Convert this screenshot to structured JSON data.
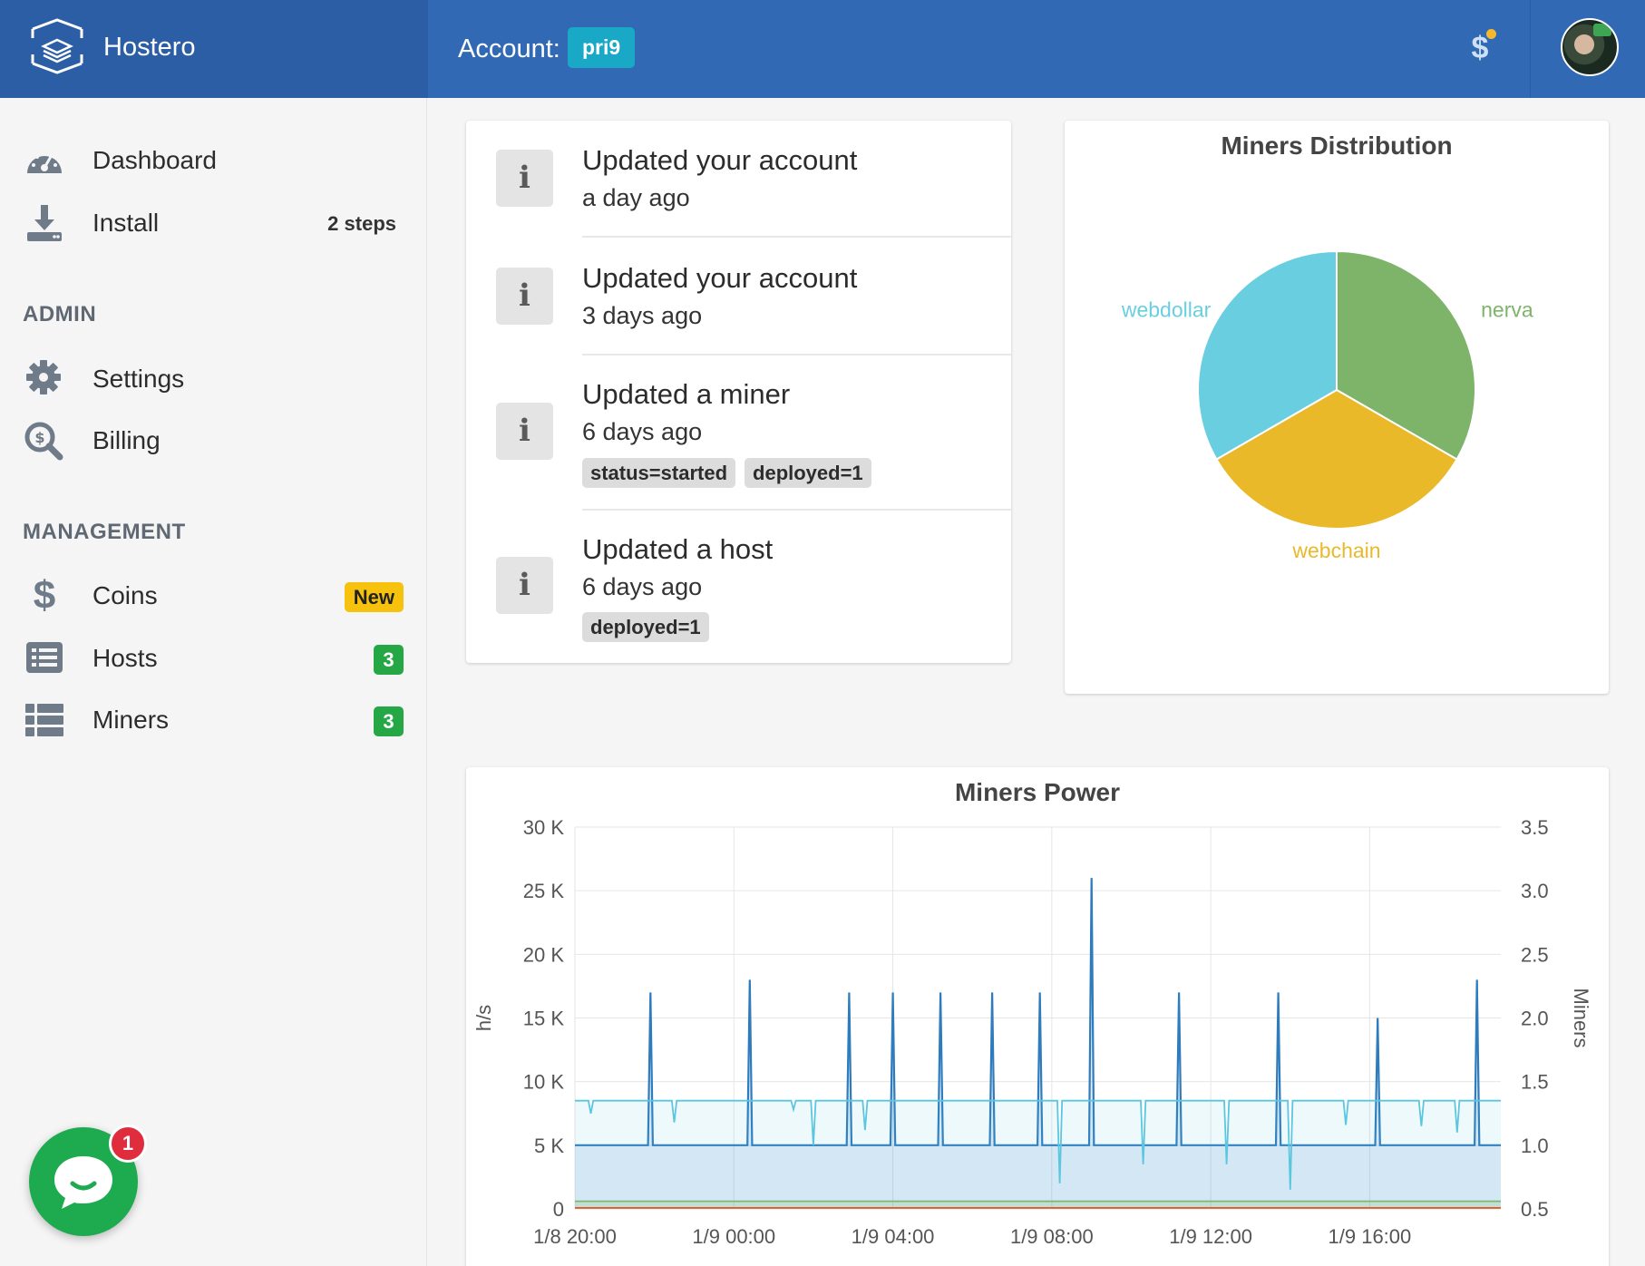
{
  "app": {
    "name": "Hostero"
  },
  "header": {
    "account_label": "Account:",
    "account_name": "pri9",
    "billing_icon": "dollar-icon",
    "avatar": "user-avatar"
  },
  "sidebar": {
    "dashboard": "Dashboard",
    "install": "Install",
    "install_meta": "2 steps",
    "admin_title": "ADMIN",
    "settings": "Settings",
    "billing": "Billing",
    "management_title": "MANAGEMENT",
    "coins": "Coins",
    "coins_badge": "New",
    "hosts": "Hosts",
    "hosts_count": "3",
    "miners": "Miners",
    "miners_count": "3"
  },
  "activity": [
    {
      "title": "Updated your account",
      "time": "a day ago",
      "tags": []
    },
    {
      "title": "Updated your account",
      "time": "3 days ago",
      "tags": []
    },
    {
      "title": "Updated a miner",
      "time": "6 days ago",
      "tags": [
        "status=started",
        "deployed=1"
      ]
    },
    {
      "title": "Updated a host",
      "time": "6 days ago",
      "tags": [
        "deployed=1"
      ]
    }
  ],
  "activity_icon": "i",
  "chat": {
    "unread": "1"
  },
  "colors": {
    "primary": "#3169b5",
    "brand": "#2b5ea4",
    "accent": "#19a8c6",
    "success": "#25a745",
    "warning": "#f6c20e"
  },
  "chart_data": [
    {
      "type": "pie",
      "title": "Miners Distribution",
      "categories": [
        "nerva",
        "webchain",
        "webdollar"
      ],
      "values": [
        1,
        1,
        1
      ],
      "colors": [
        "#7db46a",
        "#eab92a",
        "#69cfe0"
      ]
    },
    {
      "type": "line",
      "title": "Miners Power",
      "ylabel": "h/s",
      "y2label": "Miners",
      "ylim": [
        0,
        30000
      ],
      "y2lim": [
        0.5,
        3.5
      ],
      "yticks": [
        "0",
        "5 K",
        "10 K",
        "15 K",
        "20 K",
        "25 K",
        "30 K"
      ],
      "y2ticks": [
        "0.5",
        "1.0",
        "1.5",
        "2.0",
        "2.5",
        "3.0",
        "3.5"
      ],
      "xticks": [
        "1/8 20:00",
        "1/9 00:00",
        "1/9 04:00",
        "1/9 08:00",
        "1/9 12:00",
        "1/9 16:00"
      ],
      "xrange_hours": [
        20,
        43.3
      ],
      "grid": true,
      "series": [
        {
          "color": "#2e7bbd",
          "axis": "left",
          "baseline": 5000,
          "spikes": [
            [
              21.9,
              17000
            ],
            [
              24.4,
              18000
            ],
            [
              26.9,
              17000
            ],
            [
              28.0,
              17000
            ],
            [
              29.2,
              17000
            ],
            [
              30.5,
              17000
            ],
            [
              31.7,
              17000
            ],
            [
              33.0,
              26000
            ],
            [
              35.2,
              17000
            ],
            [
              37.7,
              17000
            ],
            [
              40.2,
              15000
            ],
            [
              42.7,
              18000
            ]
          ]
        },
        {
          "color": "#5bc6e0",
          "axis": "left",
          "baseline": 8500,
          "dips": [
            [
              20.4,
              7500
            ],
            [
              22.5,
              6800
            ],
            [
              25.5,
              7800
            ],
            [
              26.0,
              5000
            ],
            [
              27.3,
              6200
            ],
            [
              32.2,
              2000
            ],
            [
              34.3,
              3500
            ],
            [
              36.4,
              3500
            ],
            [
              38.0,
              1500
            ],
            [
              39.4,
              6600
            ],
            [
              41.3,
              6500
            ],
            [
              42.2,
              6000
            ]
          ]
        },
        {
          "color": "#7cba68",
          "axis": "left",
          "baseline": 600
        },
        {
          "color": "#e55a2b",
          "axis": "left",
          "baseline": 80
        }
      ]
    }
  ]
}
